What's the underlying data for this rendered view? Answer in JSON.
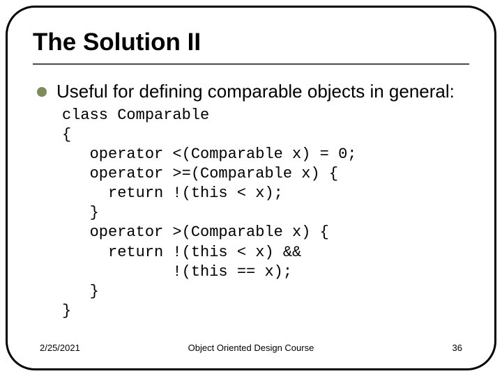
{
  "slide": {
    "title": "The Solution II",
    "title_fontsize": 35,
    "title_weight": 900,
    "title_color": "#000000",
    "rule_color": "#4a4a4a",
    "frame_border_color": "#000000",
    "frame_border_radius": 42,
    "background_color": "#ffffff"
  },
  "bullet": {
    "text": "Useful for defining comparable objects in general:",
    "dot_color": "#7e8b5a",
    "text_fontsize": 26,
    "text_color": "#000000"
  },
  "code": {
    "font_family": "Courier New",
    "fontsize": 22,
    "color": "#000000",
    "lines": [
      "class Comparable",
      "{",
      "   operator <(Comparable x) = 0;",
      "   operator >=(Comparable x) {",
      "     return !(this < x);",
      "   }",
      "   operator >(Comparable x) {",
      "     return !(this < x) &&",
      "            !(this == x);",
      "   }",
      "}"
    ],
    "text": "class Comparable\n{\n   operator <(Comparable x) = 0;\n   operator >=(Comparable x) {\n     return !(this < x);\n   }\n   operator >(Comparable x) {\n     return !(this < x) &&\n            !(this == x);\n   }\n}"
  },
  "footer": {
    "date": "2/25/2021",
    "course": "Object Oriented Design Course",
    "page": "36",
    "fontsize": 13,
    "color": "#000000"
  }
}
